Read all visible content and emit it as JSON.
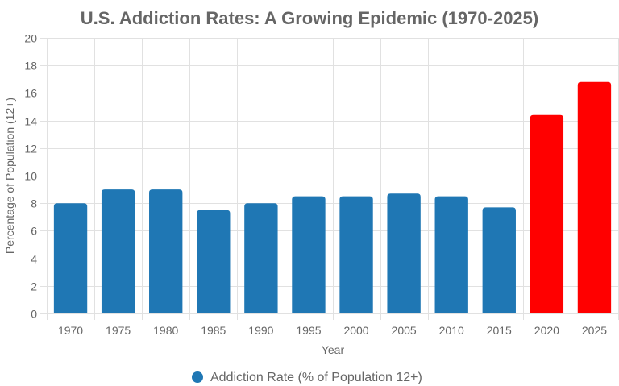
{
  "chart_data": {
    "type": "bar",
    "title": "U.S. Addiction Rates: A Growing Epidemic (1970-2025)",
    "xlabel": "Year",
    "ylabel": "Percentage of Population (12+)",
    "ylim": [
      0,
      20
    ],
    "yticks": [
      0,
      2,
      4,
      6,
      8,
      10,
      12,
      14,
      16,
      18,
      20
    ],
    "grid": true,
    "legend_position": "bottom",
    "categories": [
      "1970",
      "1975",
      "1980",
      "1985",
      "1990",
      "1995",
      "2000",
      "2005",
      "2010",
      "2015",
      "2020",
      "2025"
    ],
    "series": [
      {
        "name": "Addiction Rate (% of Population 12+)",
        "values": [
          8.0,
          9.0,
          9.0,
          7.5,
          8.0,
          8.5,
          8.5,
          8.7,
          8.5,
          7.7,
          14.4,
          16.8
        ],
        "color": "#1f77b4",
        "bar_colors": [
          "#1f77b4",
          "#1f77b4",
          "#1f77b4",
          "#1f77b4",
          "#1f77b4",
          "#1f77b4",
          "#1f77b4",
          "#1f77b4",
          "#1f77b4",
          "#1f77b4",
          "#ff0000",
          "#ff0000"
        ]
      }
    ]
  }
}
